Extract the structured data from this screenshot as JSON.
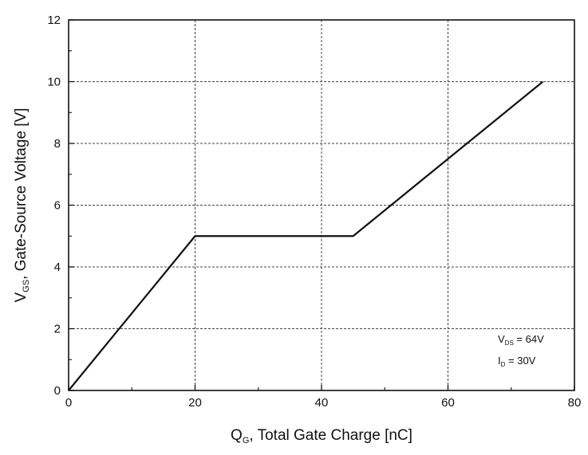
{
  "chart_data": {
    "type": "line",
    "x_axis": {
      "label_main": "Q",
      "label_sub": "G",
      "label_rest": ", Total Gate Charge [nC]",
      "lim": [
        0,
        80
      ],
      "ticks": [
        0,
        20,
        40,
        60,
        80
      ]
    },
    "y_axis": {
      "label_main": "V",
      "label_sub": "GS",
      "label_rest": ", Gate-Source Voltage [V]",
      "lim": [
        0,
        12
      ],
      "ticks": [
        0,
        2,
        4,
        6,
        8,
        10,
        12
      ]
    },
    "grid": true,
    "series": [
      {
        "x": [
          0,
          20,
          45,
          75
        ],
        "y": [
          0,
          5,
          5,
          10
        ],
        "color": "#111111"
      }
    ],
    "annotations": {
      "placement": "bottom-right",
      "lines": [
        {
          "main": "V",
          "sub": "DS",
          "rest": " = 64V"
        },
        {
          "main": "I",
          "sub": "D",
          "rest": " = 30V"
        }
      ]
    }
  }
}
